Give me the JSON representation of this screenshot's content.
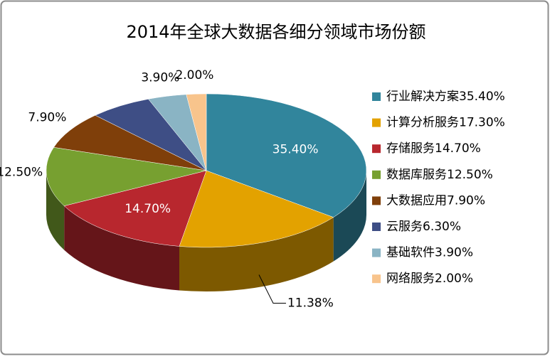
{
  "chart_data": {
    "type": "pie3d",
    "title": "2014年全球大数据各细分领域市场份额",
    "categories": [
      "行业解决方案35.40%",
      "计算分析服务17.30%",
      "存储服务14.70%",
      "数据库服务12.50%",
      "大数据应用7.90%",
      "云服务6.30%",
      "基础软件3.90%",
      "网络服务2.00%"
    ],
    "values": [
      35.4,
      17.3,
      14.7,
      12.5,
      7.9,
      6.3,
      3.9,
      2.0
    ],
    "value_labels": [
      "35.40%",
      null,
      "14.70%",
      "12.50%",
      "7.90%",
      null,
      "3.90%",
      "2.00%"
    ],
    "colors": [
      "#31859c",
      "#e3a200",
      "#b8272e",
      "#77a030",
      "#7f3f0a",
      "#3e4e85",
      "#8ab4c4",
      "#f8c48c"
    ],
    "annotations": [
      "11.38%"
    ],
    "legend": "right"
  }
}
